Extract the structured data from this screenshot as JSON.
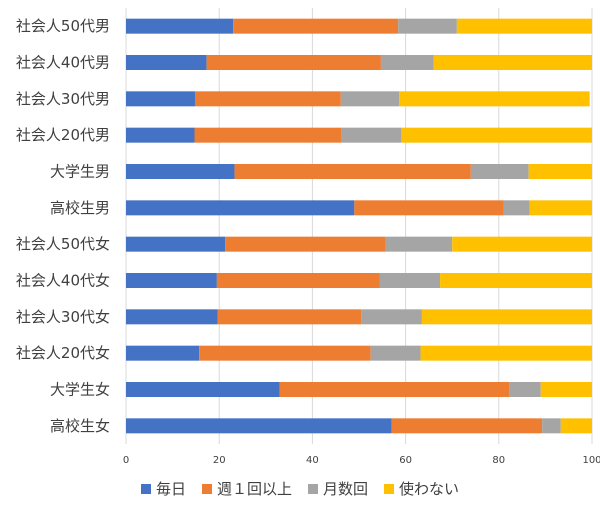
{
  "chart_data": {
    "type": "bar",
    "orientation": "horizontal",
    "stacked": true,
    "categories": [
      "社会人50代男",
      "社会人40代男",
      "社会人30代男",
      "社会人20代男",
      "大学生男",
      "高校生男",
      "社会人50代女",
      "社会人40代女",
      "社会人30代女",
      "社会人20代女",
      "大学生女",
      "高校生女"
    ],
    "series": [
      {
        "name": "毎日",
        "color": "#4472c4",
        "values": [
          23,
          17.3,
          14.8,
          14.7,
          23.3,
          49,
          21.3,
          19.5,
          19.7,
          15.7,
          33,
          57
        ]
      },
      {
        "name": "週１回以上",
        "color": "#ed7d31",
        "values": [
          35.4,
          37.4,
          31.3,
          31.6,
          50.7,
          32,
          34.4,
          34.9,
          30.8,
          36.8,
          49.2,
          32.3
        ]
      },
      {
        "name": "月数回",
        "color": "#a5a5a5",
        "values": [
          12.6,
          11.3,
          12.5,
          12.8,
          12.4,
          5.6,
          14.3,
          13,
          13,
          10.7,
          6.8,
          4
        ]
      },
      {
        "name": "使わない",
        "color": "#ffc000",
        "values": [
          29,
          34,
          40.9,
          40.9,
          13.6,
          13.4,
          30,
          32.6,
          36.5,
          36.8,
          11,
          6.7
        ]
      }
    ],
    "xlim": [
      0,
      100
    ],
    "xticks": [
      "0",
      "20",
      "40",
      "60",
      "80",
      "100"
    ],
    "grid": true,
    "legend_position": "bottom",
    "title": "",
    "xlabel": "",
    "ylabel": ""
  }
}
